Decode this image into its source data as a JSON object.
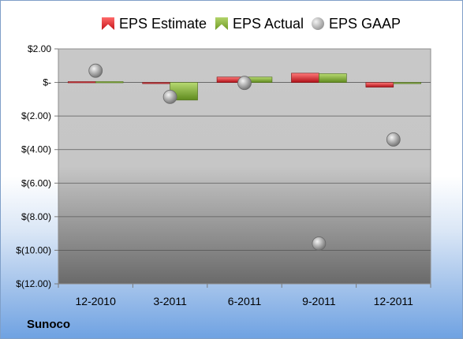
{
  "company": "Sunoco",
  "legend": {
    "estimate": "EPS Estimate",
    "actual": "EPS Actual",
    "gaap": "EPS GAAP"
  },
  "colors": {
    "estimate": "#d42028",
    "actual": "#8ab33f",
    "gaap": "#9a9a9a",
    "plot_top": "#c8c8c8",
    "plot_bottom": "#6a6a6a"
  },
  "chart_data": {
    "type": "bar",
    "title": "",
    "xlabel": "",
    "ylabel": "",
    "categories": [
      "12-2010",
      "3-2011",
      "6-2011",
      "9-2011",
      "12-2011"
    ],
    "ylim": [
      -12,
      2
    ],
    "yticks": [
      2,
      0,
      -2,
      -4,
      -6,
      -8,
      -10,
      -12
    ],
    "ytick_labels": [
      "$2.00",
      "$-",
      "$(2.00)",
      "$(4.00)",
      "$(6.00)",
      "$(8.00)",
      "$(10.00)",
      "$(12.00)"
    ],
    "grid": true,
    "legend_position": "top",
    "series": [
      {
        "name": "EPS Estimate",
        "type": "bar",
        "values": [
          0.05,
          -0.05,
          0.32,
          0.55,
          -0.28
        ]
      },
      {
        "name": "EPS Actual",
        "type": "bar",
        "values": [
          0.05,
          -1.05,
          0.32,
          0.52,
          0.0
        ]
      },
      {
        "name": "EPS GAAP",
        "type": "scatter",
        "values": [
          0.7,
          -0.86,
          -0.03,
          -9.6,
          -3.4
        ]
      }
    ]
  }
}
